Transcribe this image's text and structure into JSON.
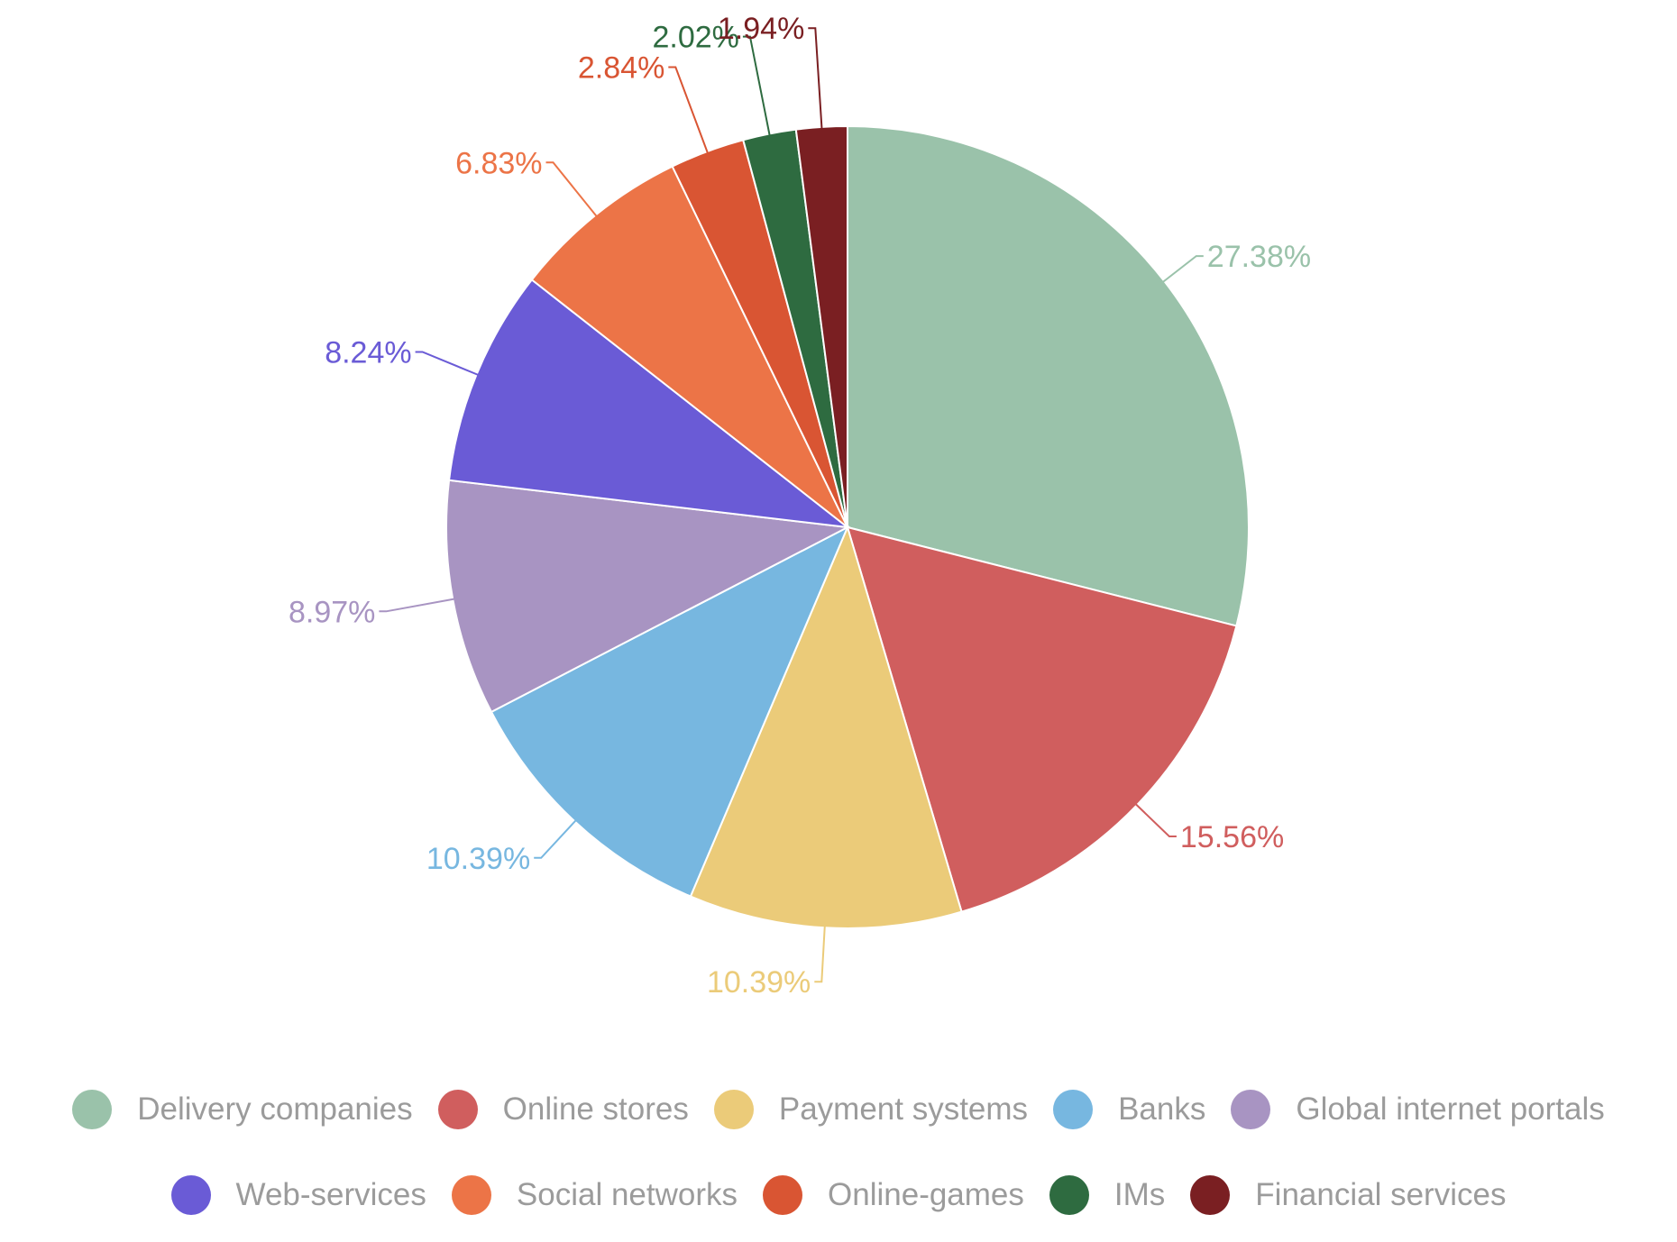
{
  "chart_data": {
    "type": "pie",
    "title": "",
    "labels": [
      "Delivery companies",
      "Online stores",
      "Payment systems",
      "Banks",
      "Global internet portals",
      "Web-services",
      "Social networks",
      "Online-games",
      "IMs",
      "Financial services"
    ],
    "values": [
      27.38,
      15.56,
      10.39,
      10.39,
      8.97,
      8.24,
      6.83,
      2.84,
      2.02,
      1.94
    ],
    "value_labels": [
      "27.38%",
      "15.56%",
      "10.39%",
      "10.39%",
      "8.97%",
      "8.24%",
      "6.83%",
      "2.84%",
      "2.02%",
      "1.94%"
    ],
    "colors": [
      "#9ac2aa",
      "#d05e5e",
      "#ebcb79",
      "#77b7e0",
      "#a894c2",
      "#6a5bd6",
      "#ec7447",
      "#d95533",
      "#2e6b40",
      "#7a1f22"
    ],
    "legend_position": "bottom",
    "direction": "clockwise-from-top"
  },
  "legend": {
    "rows": [
      [
        0,
        1,
        2,
        3,
        4
      ],
      [
        5,
        6,
        7,
        8,
        9
      ]
    ]
  }
}
